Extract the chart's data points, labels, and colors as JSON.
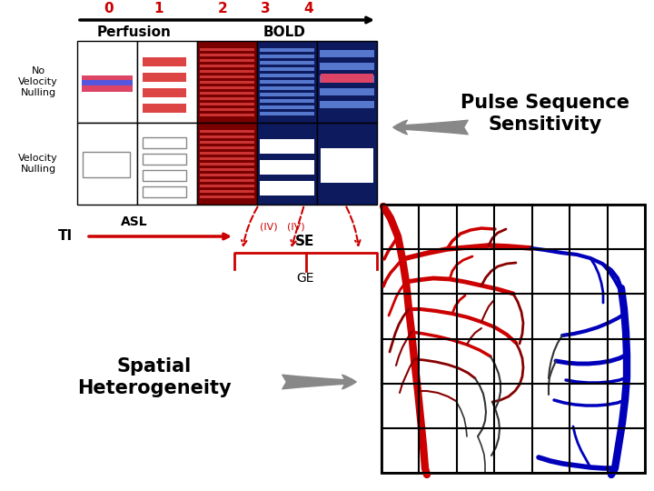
{
  "bg_color": "#ffffff",
  "red_color": "#cc0000",
  "dark_red_bg": "#7a0000",
  "dark_blue_bg": "#0d1a5e",
  "pulse_seq_text": "Pulse Sequence\nSensitivity",
  "spatial_text": "Spatial\nHeterogeneity",
  "perfusion_label": "Perfusion",
  "bold_label": "BOLD",
  "no_vel_label": "No\nVelocity\nNulling",
  "vel_label": "Velocity\nNulling",
  "asl_label": "ASL",
  "ti_label": "TI",
  "se_label": "SE",
  "ge_label": "GE",
  "iv_label": "(IV)",
  "numbers": [
    "0",
    "1",
    "2",
    "3",
    "4"
  ]
}
